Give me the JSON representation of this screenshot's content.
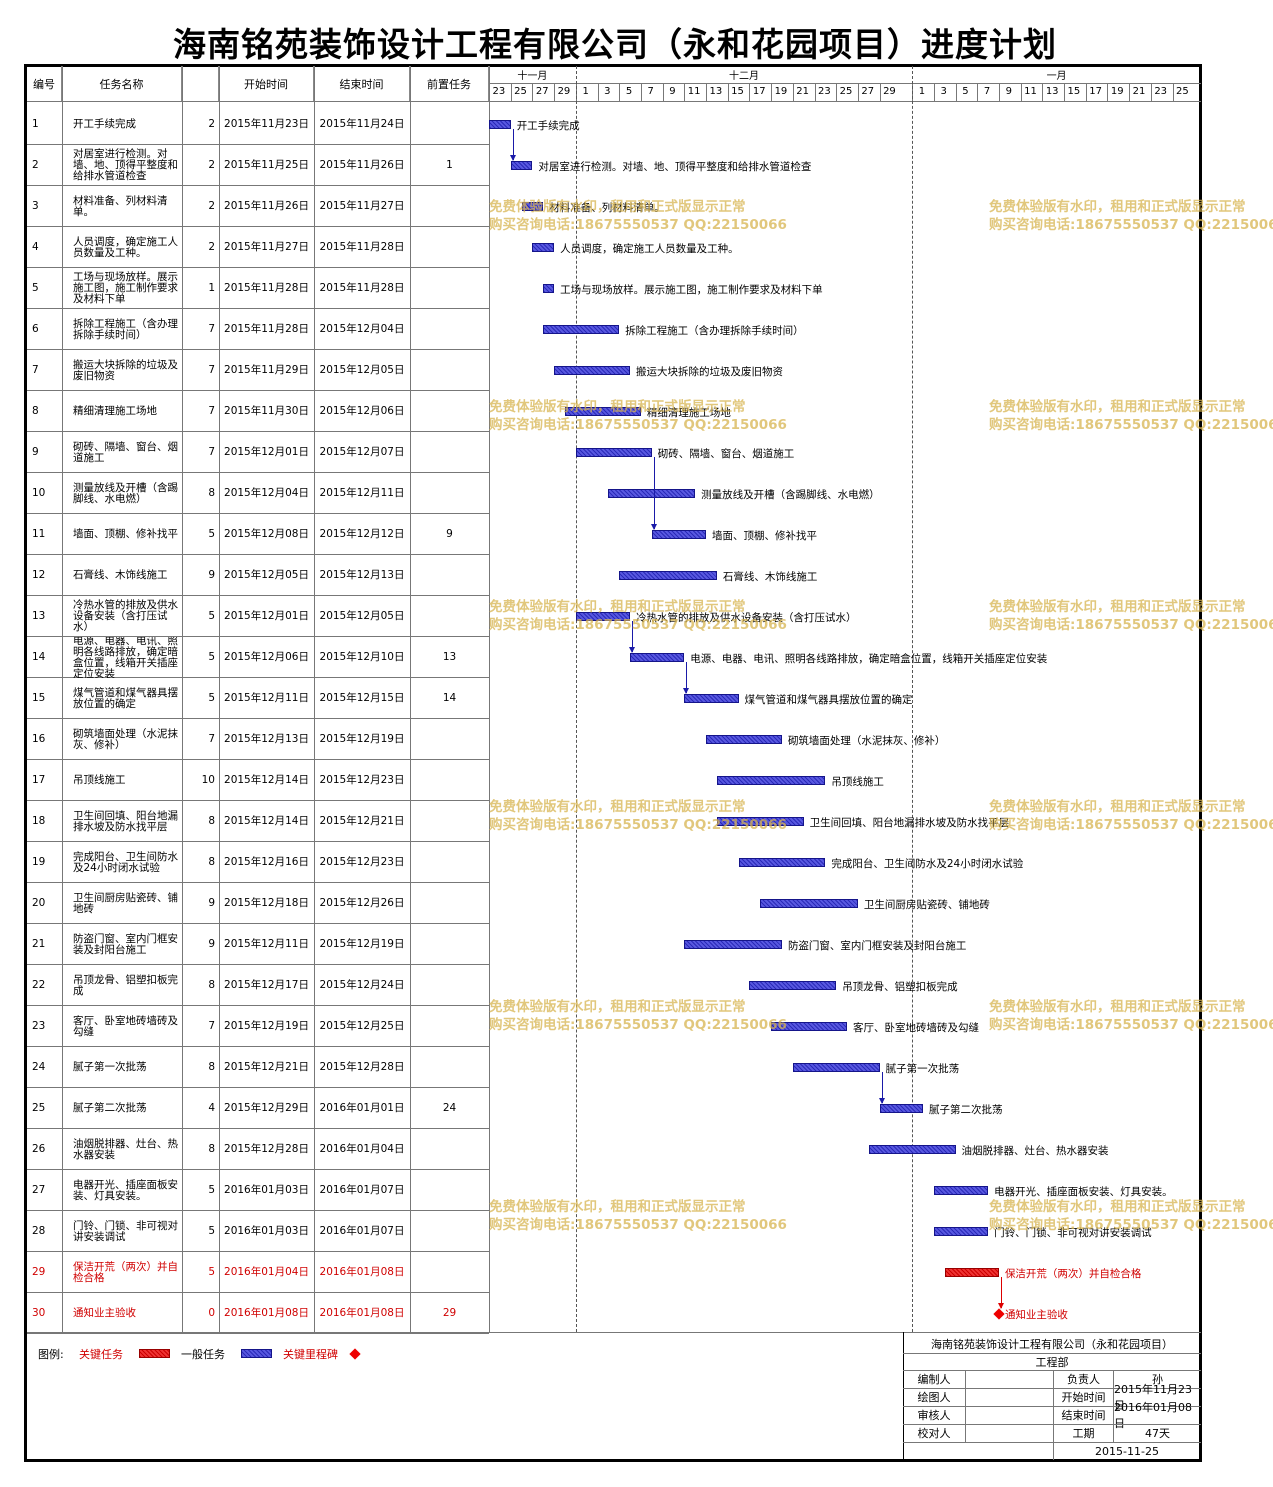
{
  "title": "海南铭苑装饰设计工程有限公司（永和花园项目）进度计划",
  "headers": {
    "num": "编号",
    "name": "任务名称",
    "duration": "工期",
    "start": "开始时间",
    "end": "结束时间",
    "pred": "前置任务"
  },
  "months": [
    "十一月",
    "十二月",
    "一月"
  ],
  "day_ticks": [
    "23",
    "25",
    "27",
    "29",
    "1",
    "3",
    "5",
    "7",
    "9",
    "11",
    "13",
    "15",
    "17",
    "19",
    "21",
    "23",
    "25",
    "27",
    "29",
    "1",
    "3",
    "5",
    "7",
    "9",
    "11",
    "13",
    "15",
    "17",
    "19",
    "21",
    "23",
    "25"
  ],
  "tasks": [
    {
      "num": "1",
      "name": "开工手续完成",
      "label": "开工手续完成",
      "dur": "2",
      "start": "2015年11月23日",
      "end": "2015年11月24日",
      "pred": "",
      "s": 0,
      "e": 2,
      "crit": false
    },
    {
      "num": "2",
      "name": "对居室进行检测。对墙、地、顶得平整度和给排水管道检查",
      "label": "对居室进行检测。对墙、地、顶得平整度和给排水管道检查",
      "dur": "2",
      "start": "2015年11月25日",
      "end": "2015年11月26日",
      "pred": "1",
      "s": 2,
      "e": 4,
      "crit": false
    },
    {
      "num": "3",
      "name": "材料准备、列材料清单。",
      "label": "材料准备、列材料清单。",
      "dur": "2",
      "start": "2015年11月26日",
      "end": "2015年11月27日",
      "pred": "",
      "s": 3,
      "e": 5,
      "crit": false
    },
    {
      "num": "4",
      "name": "人员调度，确定施工人员数量及工种。",
      "label": "人员调度，确定施工人员数量及工种。",
      "dur": "2",
      "start": "2015年11月27日",
      "end": "2015年11月28日",
      "pred": "",
      "s": 4,
      "e": 6,
      "crit": false
    },
    {
      "num": "5",
      "name": "工场与现场放样。展示施工图，施工制作要求及材料下单",
      "label": "工场与现场放样。展示施工图，施工制作要求及材料下单",
      "dur": "1",
      "start": "2015年11月28日",
      "end": "2015年11月28日",
      "pred": "",
      "s": 5,
      "e": 6,
      "crit": false
    },
    {
      "num": "6",
      "name": "拆除工程施工（含办理拆除手续时间）",
      "label": "拆除工程施工（含办理拆除手续时间）",
      "dur": "7",
      "start": "2015年11月28日",
      "end": "2015年12月04日",
      "pred": "",
      "s": 5,
      "e": 12,
      "crit": false
    },
    {
      "num": "7",
      "name": "搬运大块拆除的垃圾及废旧物资",
      "label": "搬运大块拆除的垃圾及废旧物资",
      "dur": "7",
      "start": "2015年11月29日",
      "end": "2015年12月05日",
      "pred": "",
      "s": 6,
      "e": 13,
      "crit": false
    },
    {
      "num": "8",
      "name": "精细清理施工场地",
      "label": "精细清理施工场地",
      "dur": "7",
      "start": "2015年11月30日",
      "end": "2015年12月06日",
      "pred": "",
      "s": 7,
      "e": 14,
      "crit": false
    },
    {
      "num": "9",
      "name": "砌砖、隔墙、窗台、烟道施工",
      "label": "砌砖、隔墙、窗台、烟道施工",
      "dur": "7",
      "start": "2015年12月01日",
      "end": "2015年12月07日",
      "pred": "",
      "s": 8,
      "e": 15,
      "crit": false
    },
    {
      "num": "10",
      "name": "测量放线及开槽（含踢脚线、水电燃）",
      "label": "测量放线及开槽（含踢脚线、水电燃）",
      "dur": "8",
      "start": "2015年12月04日",
      "end": "2015年12月11日",
      "pred": "",
      "s": 11,
      "e": 19,
      "crit": false
    },
    {
      "num": "11",
      "name": "墙面、顶棚、修补找平",
      "label": "墙面、顶棚、修补找平",
      "dur": "5",
      "start": "2015年12月08日",
      "end": "2015年12月12日",
      "pred": "9",
      "s": 15,
      "e": 20,
      "crit": false
    },
    {
      "num": "12",
      "name": "石膏线、木饰线施工",
      "label": "石膏线、木饰线施工",
      "dur": "9",
      "start": "2015年12月05日",
      "end": "2015年12月13日",
      "pred": "",
      "s": 12,
      "e": 21,
      "crit": false
    },
    {
      "num": "13",
      "name": "冷热水管的排放及供水设备安装（含打压试水）",
      "label": "冷热水管的排放及供水设备安装（含打压试水）",
      "dur": "5",
      "start": "2015年12月01日",
      "end": "2015年12月05日",
      "pred": "",
      "s": 8,
      "e": 13,
      "crit": false
    },
    {
      "num": "14",
      "name": "电源、电器、电讯、照明各线路排放，确定暗盒位置，线箱开关插座定位安装",
      "label": "电源、电器、电讯、照明各线路排放，确定暗盒位置，线箱开关插座定位安装",
      "dur": "5",
      "start": "2015年12月06日",
      "end": "2015年12月10日",
      "pred": "13",
      "s": 13,
      "e": 18,
      "crit": false
    },
    {
      "num": "15",
      "name": "煤气管道和煤气器具摆放位置的确定",
      "label": "煤气管道和煤气器具摆放位置的确定",
      "dur": "5",
      "start": "2015年12月11日",
      "end": "2015年12月15日",
      "pred": "14",
      "s": 18,
      "e": 23,
      "crit": false
    },
    {
      "num": "16",
      "name": "砌筑墙面处理（水泥抹灰、修补）",
      "label": "砌筑墙面处理（水泥抹灰、修补）",
      "dur": "7",
      "start": "2015年12月13日",
      "end": "2015年12月19日",
      "pred": "",
      "s": 20,
      "e": 27,
      "crit": false
    },
    {
      "num": "17",
      "name": "吊顶线施工",
      "label": "吊顶线施工",
      "dur": "10",
      "start": "2015年12月14日",
      "end": "2015年12月23日",
      "pred": "",
      "s": 21,
      "e": 31,
      "crit": false
    },
    {
      "num": "18",
      "name": "卫生间回填、阳台地漏排水坡及防水找平层",
      "label": "卫生间回填、阳台地漏排水坡及防水找平层",
      "dur": "8",
      "start": "2015年12月14日",
      "end": "2015年12月21日",
      "pred": "",
      "s": 21,
      "e": 29,
      "crit": false
    },
    {
      "num": "19",
      "name": "完成阳台、卫生间防水及24小时闭水试验",
      "label": "完成阳台、卫生间防水及24小时闭水试验",
      "dur": "8",
      "start": "2015年12月16日",
      "end": "2015年12月23日",
      "pred": "",
      "s": 23,
      "e": 31,
      "crit": false
    },
    {
      "num": "20",
      "name": "卫生间厨房贴瓷砖、铺地砖",
      "label": "卫生间厨房贴瓷砖、铺地砖",
      "dur": "9",
      "start": "2015年12月18日",
      "end": "2015年12月26日",
      "pred": "",
      "s": 25,
      "e": 34,
      "crit": false
    },
    {
      "num": "21",
      "name": "防盗门窗、室内门框安装及封阳台施工",
      "label": "防盗门窗、室内门框安装及封阳台施工",
      "dur": "9",
      "start": "2015年12月11日",
      "end": "2015年12月19日",
      "pred": "",
      "s": 18,
      "e": 27,
      "crit": false
    },
    {
      "num": "22",
      "name": "吊顶龙骨、铝塑扣板完成",
      "label": "吊顶龙骨、铝塑扣板完成",
      "dur": "8",
      "start": "2015年12月17日",
      "end": "2015年12月24日",
      "pred": "",
      "s": 24,
      "e": 32,
      "crit": false
    },
    {
      "num": "23",
      "name": "客厅、卧室地砖墙砖及勾缝",
      "label": "客厅、卧室地砖墙砖及勾缝",
      "dur": "7",
      "start": "2015年12月19日",
      "end": "2015年12月25日",
      "pred": "",
      "s": 26,
      "e": 33,
      "crit": false
    },
    {
      "num": "24",
      "name": "腻子第一次批荡",
      "label": "腻子第一次批荡",
      "dur": "8",
      "start": "2015年12月21日",
      "end": "2015年12月28日",
      "pred": "",
      "s": 28,
      "e": 36,
      "crit": false
    },
    {
      "num": "25",
      "name": "腻子第二次批荡",
      "label": "腻子第二次批荡",
      "dur": "4",
      "start": "2015年12月29日",
      "end": "2016年01月01日",
      "pred": "24",
      "s": 36,
      "e": 40,
      "crit": false
    },
    {
      "num": "26",
      "name": "油烟脱排器、灶台、热水器安装",
      "label": "油烟脱排器、灶台、热水器安装",
      "dur": "8",
      "start": "2015年12月28日",
      "end": "2016年01月04日",
      "pred": "",
      "s": 35,
      "e": 43,
      "crit": false
    },
    {
      "num": "27",
      "name": "电器开光、插座面板安装、灯具安装。",
      "label": "电器开光、插座面板安装、灯具安装。",
      "dur": "5",
      "start": "2016年01月03日",
      "end": "2016年01月07日",
      "pred": "",
      "s": 41,
      "e": 46,
      "crit": false
    },
    {
      "num": "28",
      "name": "门铃、门锁、非可视对讲安装调试",
      "label": "门铃、门锁、非可视对讲安装调试",
      "dur": "5",
      "start": "2016年01月03日",
      "end": "2016年01月07日",
      "pred": "",
      "s": 41,
      "e": 46,
      "crit": false
    },
    {
      "num": "29",
      "name": "保洁开荒（两次）并自检合格",
      "label": "保洁开荒（两次）并自检合格",
      "dur": "5",
      "start": "2016年01月04日",
      "end": "2016年01月08日",
      "pred": "",
      "s": 42,
      "e": 47,
      "crit": true
    },
    {
      "num": "30",
      "name": "通知业主验收",
      "label": "通知业主验收",
      "dur": "0",
      "start": "2016年01月08日",
      "end": "2016年01月08日",
      "pred": "29",
      "s": 47,
      "e": 47,
      "crit": true,
      "milestone": true
    }
  ],
  "legend": {
    "prefix": "图例:",
    "critical": "关键任务",
    "normal": "一般任务",
    "milestone": "关键里程碑"
  },
  "signoff": {
    "company": "海南铭苑装饰设计工程有限公司（永和花园项目）",
    "dept": "工程部",
    "rows": [
      [
        "编制人",
        "",
        "负责人",
        "孙"
      ],
      [
        "绘图人",
        "",
        "开始时间",
        "2015年11月23日"
      ],
      [
        "审核人",
        "",
        "结束时间",
        "2016年01月08日"
      ],
      [
        "校对人",
        "",
        "工期",
        "47天"
      ]
    ],
    "date": "2015-11-25"
  },
  "watermark": {
    "line1": "免费体验版有水印，租用和正式版显示正常",
    "line2": "购买咨询电话:18675550537 QQ:22150066"
  },
  "colors": {
    "normal_bar": "#4444cc",
    "critical_bar": "#dd2222",
    "watermark": "#d8b450"
  }
}
